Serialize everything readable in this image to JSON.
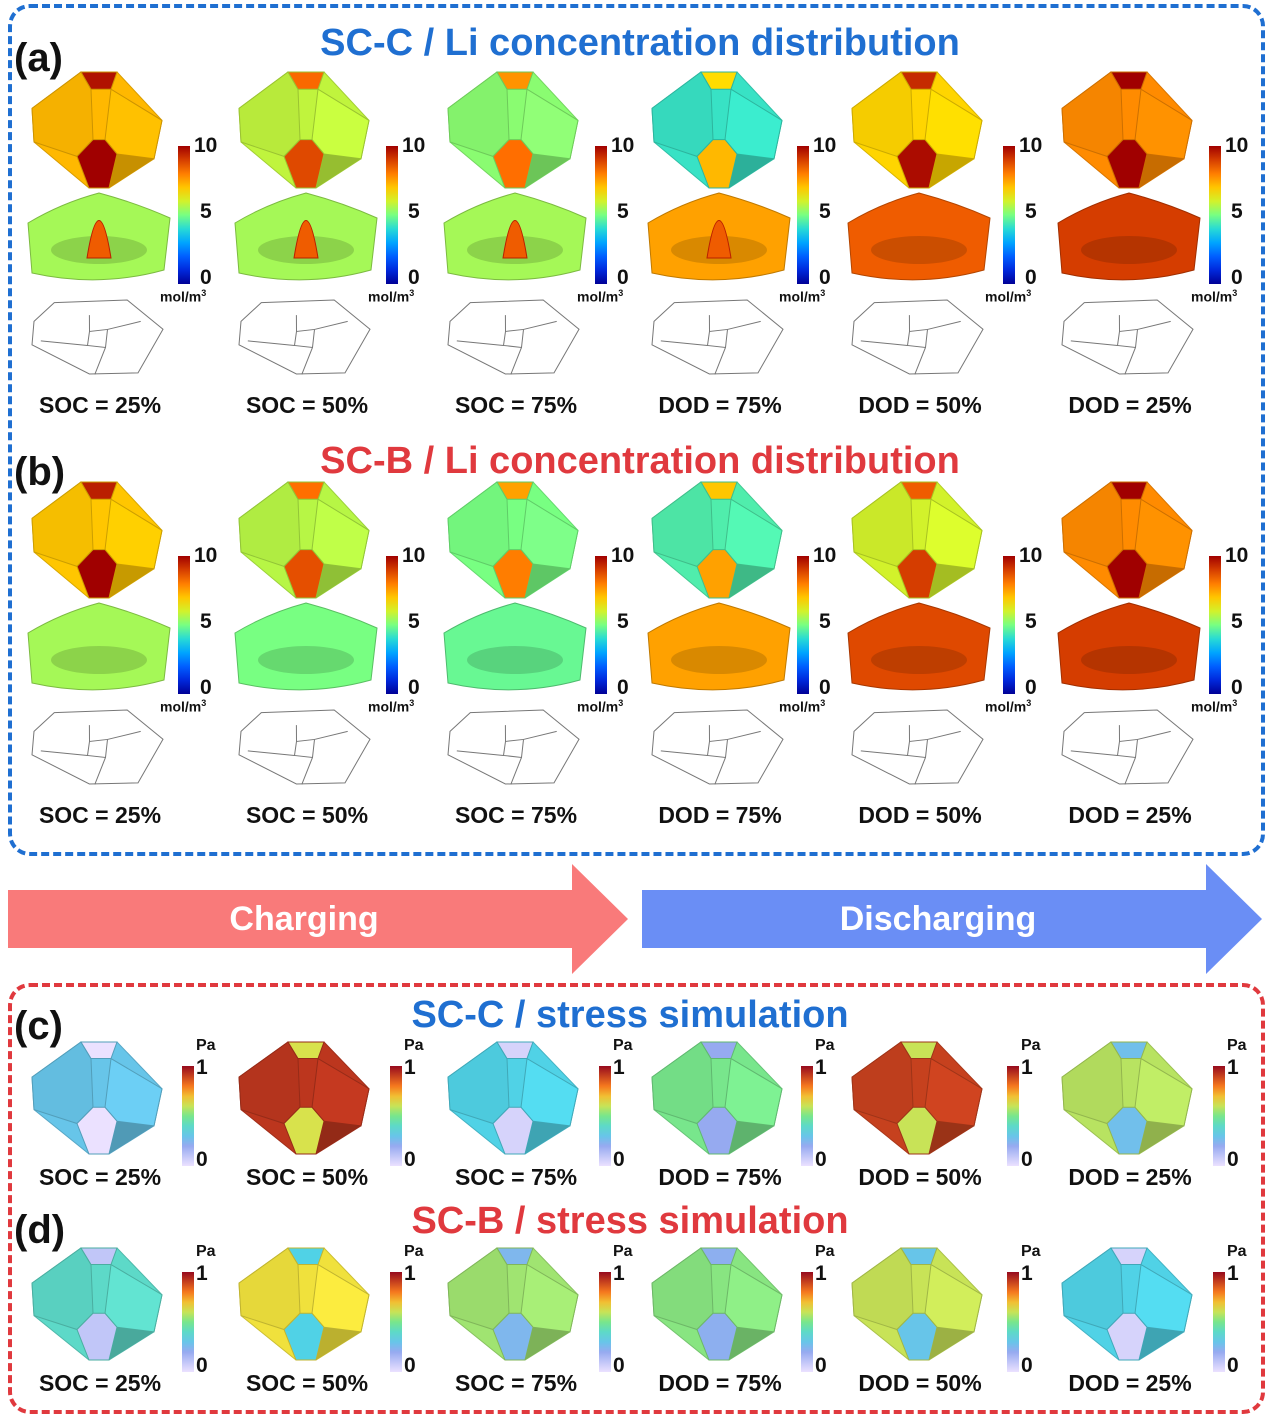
{
  "colors": {
    "blue_accent": "#1f6fd1",
    "red_accent": "#e0393e",
    "charging_arrow": "#f97a7a",
    "discharging_arrow": "#6a8ef5"
  },
  "panel_a": {
    "label": "(a)",
    "title": "SC-C / Li concentration distribution",
    "colorbar": {
      "max": "10",
      "mid": "5",
      "min": "0",
      "unit": "mol/m",
      "unit_sup": "3"
    },
    "states": [
      "SOC = 25%",
      "SOC = 50%",
      "SOC = 75%",
      "DOD = 75%",
      "DOD = 50%",
      "DOD = 25%"
    ],
    "fill_levels": [
      0.72,
      0.58,
      0.52,
      0.42,
      0.68,
      0.78
    ],
    "surface_levels": [
      0.55,
      0.55,
      0.55,
      0.75,
      0.85,
      0.9
    ]
  },
  "panel_b": {
    "label": "(b)",
    "title": "SC-B / Li concentration distribution",
    "colorbar": {
      "max": "10",
      "mid": "5",
      "min": "0",
      "unit": "mol/m",
      "unit_sup": "3"
    },
    "states": [
      "SOC = 25%",
      "SOC = 50%",
      "SOC = 75%",
      "DOD = 75%",
      "DOD = 50%",
      "DOD = 25%"
    ],
    "fill_levels": [
      0.7,
      0.57,
      0.5,
      0.45,
      0.6,
      0.78
    ],
    "surface_levels": [
      0.55,
      0.5,
      0.48,
      0.75,
      0.88,
      0.9
    ]
  },
  "arrows": {
    "charging": "Charging",
    "discharging": "Discharging"
  },
  "panel_c": {
    "label": "(c)",
    "title": "SC-C / stress simulation",
    "colorbar": {
      "max": "1",
      "min": "0",
      "unit": "Pa"
    },
    "states": [
      "SOC = 25%",
      "SOC = 50%",
      "SOC = 75%",
      "DOD = 75%",
      "DOD = 50%",
      "DOD = 25%"
    ],
    "fill_levels": [
      0.3,
      0.92,
      0.35,
      0.5,
      0.9,
      0.58
    ]
  },
  "panel_d": {
    "label": "(d)",
    "title": "SC-B / stress simulation",
    "colorbar": {
      "max": "1",
      "min": "0",
      "unit": "Pa"
    },
    "states": [
      "SOC = 25%",
      "SOC = 50%",
      "SOC = 75%",
      "DOD = 75%",
      "DOD = 50%",
      "DOD = 25%"
    ],
    "fill_levels": [
      0.4,
      0.65,
      0.55,
      0.52,
      0.6,
      0.35
    ]
  }
}
